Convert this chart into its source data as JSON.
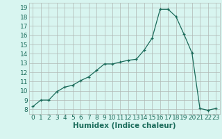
{
  "x": [
    0,
    1,
    2,
    3,
    4,
    5,
    6,
    7,
    8,
    9,
    10,
    11,
    12,
    13,
    14,
    15,
    16,
    17,
    18,
    19,
    20,
    21,
    22,
    23
  ],
  "y": [
    8.3,
    9.0,
    9.0,
    9.9,
    10.4,
    10.6,
    11.1,
    11.5,
    12.2,
    12.9,
    12.9,
    13.1,
    13.3,
    13.4,
    14.4,
    15.7,
    18.8,
    18.8,
    18.0,
    16.1,
    14.1,
    8.1,
    7.9,
    8.1
  ],
  "xlabel": "Humidex (Indice chaleur)",
  "xlim": [
    -0.5,
    23.5
  ],
  "ylim": [
    7.5,
    19.5
  ],
  "yticks": [
    8,
    9,
    10,
    11,
    12,
    13,
    14,
    15,
    16,
    17,
    18,
    19
  ],
  "xticks": [
    0,
    1,
    2,
    3,
    4,
    5,
    6,
    7,
    8,
    9,
    10,
    11,
    12,
    13,
    14,
    15,
    16,
    17,
    18,
    19,
    20,
    21,
    22,
    23
  ],
  "line_color": "#1a6b5a",
  "marker": "+",
  "bg_color": "#d8f5f0",
  "grid_color": "#b0b8b4",
  "label_color": "#1a6b5a",
  "tick_color": "#1a6b5a",
  "font_size": 6.5,
  "xlabel_fontsize": 7.5
}
